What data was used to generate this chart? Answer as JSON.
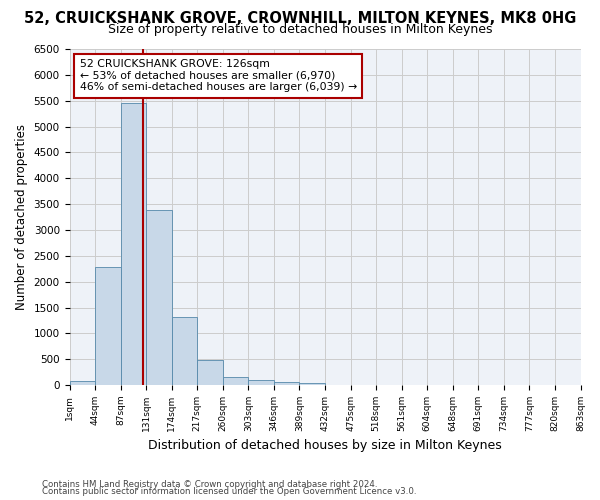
{
  "title": "52, CRUICKSHANK GROVE, CROWNHILL, MILTON KEYNES, MK8 0HG",
  "subtitle": "Size of property relative to detached houses in Milton Keynes",
  "xlabel": "Distribution of detached houses by size in Milton Keynes",
  "ylabel": "Number of detached properties",
  "footer_line1": "Contains HM Land Registry data © Crown copyright and database right 2024.",
  "footer_line2": "Contains public sector information licensed under the Open Government Licence v3.0.",
  "bin_labels": [
    "1sqm",
    "44sqm",
    "87sqm",
    "131sqm",
    "174sqm",
    "217sqm",
    "260sqm",
    "303sqm",
    "346sqm",
    "389sqm",
    "432sqm",
    "475sqm",
    "518sqm",
    "561sqm",
    "604sqm",
    "648sqm",
    "691sqm",
    "734sqm",
    "777sqm",
    "820sqm",
    "863sqm"
  ],
  "bar_values": [
    75,
    2275,
    5450,
    3380,
    1310,
    480,
    160,
    90,
    50,
    40,
    0,
    0,
    0,
    0,
    0,
    0,
    0,
    0,
    0,
    0
  ],
  "bar_color": "#c8d8e8",
  "bar_edge_color": "#5588aa",
  "vline_x": 2.886,
  "vline_color": "#aa0000",
  "annotation_line1": "52 CRUICKSHANK GROVE: 126sqm",
  "annotation_line2": "← 53% of detached houses are smaller (6,970)",
  "annotation_line3": "46% of semi-detached houses are larger (6,039) →",
  "ylim": [
    0,
    6500
  ],
  "yticks": [
    0,
    500,
    1000,
    1500,
    2000,
    2500,
    3000,
    3500,
    4000,
    4500,
    5000,
    5500,
    6000,
    6500
  ],
  "grid_color": "#cccccc",
  "bg_color": "#eef2f8",
  "title_fontsize": 10.5,
  "subtitle_fontsize": 9,
  "ylabel_fontsize": 8.5,
  "xlabel_fontsize": 9,
  "tick_fontsize": 7.5,
  "xtick_fontsize": 6.5,
  "footer_fontsize": 6.2,
  "annot_fontsize": 7.8
}
